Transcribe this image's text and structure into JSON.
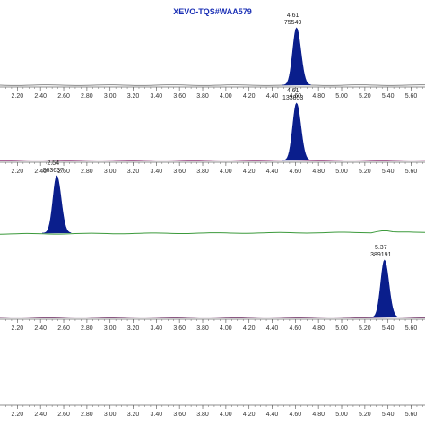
{
  "instrument": {
    "title": "XEVO-TQS#WAA579",
    "title_color": "#1a2fb5"
  },
  "chart_data": {
    "type": "line",
    "x_ticks": [
      "2.20",
      "2.40",
      "2.60",
      "2.80",
      "3.00",
      "3.20",
      "3.40",
      "3.60",
      "3.80",
      "4.00",
      "4.20",
      "4.40",
      "4.60",
      "4.80",
      "5.00",
      "5.20",
      "5.40",
      "5.60"
    ],
    "xlim": [
      2.05,
      5.72
    ],
    "grid": false,
    "peak_fill_color": "#0a1e8c",
    "panels": [
      {
        "baseline_color": "#8a8a8a",
        "peak": {
          "rt": 4.61,
          "rt_label": "4.61",
          "area_label": "75549",
          "relative_height": 0.85
        },
        "show_axis": true
      },
      {
        "baseline_color": "#a0508a",
        "peak": {
          "rt": 4.61,
          "rt_label": "4.61",
          "area_label": "133853",
          "relative_height": 0.85
        },
        "show_axis": true
      },
      {
        "baseline_color": "#3c9a3c",
        "peak": {
          "rt": 2.54,
          "rt_label": "2.54",
          "area_label": "363637",
          "relative_height": 0.85
        },
        "show_axis": false
      },
      {
        "baseline_color": "#7a4070",
        "peak": {
          "rt": 5.37,
          "rt_label": "5.37",
          "area_label": "389191",
          "relative_height": 0.85
        },
        "show_axis": true
      },
      {
        "baseline_color": null,
        "peak": null,
        "show_axis": true
      }
    ]
  }
}
